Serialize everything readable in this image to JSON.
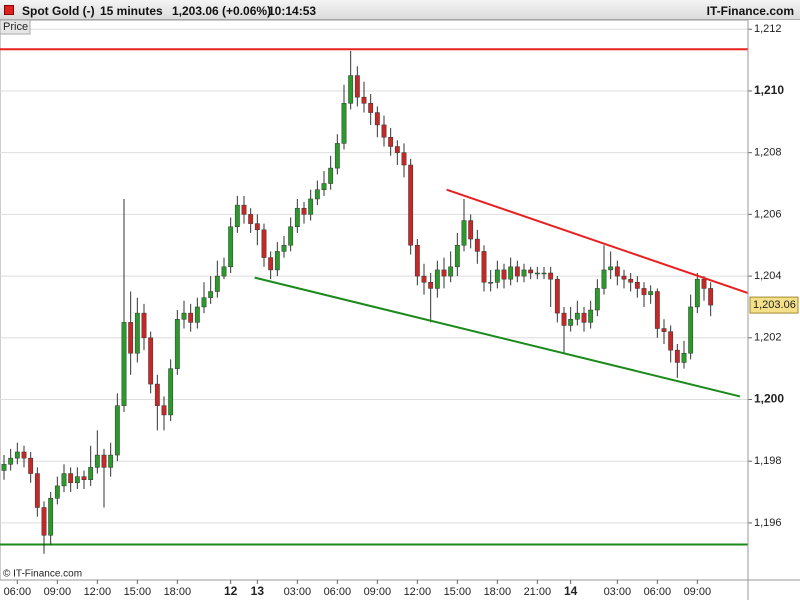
{
  "header": {
    "instrument": "Spot Gold (-)",
    "interval": "15 minutes",
    "quote": "1,203.06 (+0.06%)",
    "time": "10:14:53",
    "brand": "IT-Finance.com"
  },
  "chart_data": {
    "type": "candlestick",
    "panel_label": "Price",
    "watermark": "© IT-Finance.com",
    "up_color": "#2a9a2a",
    "down_color": "#c62828",
    "wick_color": "#333333",
    "grid": true,
    "ylim": [
      1194.15,
      1212.3
    ],
    "yticks": [
      {
        "value": 1196,
        "label": "1,196"
      },
      {
        "value": 1198,
        "label": "1,198"
      },
      {
        "value": 1200,
        "label": "1,200"
      },
      {
        "value": 1202,
        "label": "1,202"
      },
      {
        "value": 1204,
        "label": "1,204"
      },
      {
        "value": 1206,
        "label": "1,206"
      },
      {
        "value": 1208,
        "label": "1,208"
      },
      {
        "value": 1210,
        "label": "1,210"
      },
      {
        "value": 1212,
        "label": "1,212"
      }
    ],
    "xlim": [
      -0.6,
      111.6
    ],
    "xticks": [
      {
        "value": 2,
        "label": "06:00"
      },
      {
        "value": 8,
        "label": "09:00"
      },
      {
        "value": 14,
        "label": "12:00"
      },
      {
        "value": 20,
        "label": "15:00"
      },
      {
        "value": 26,
        "label": "18:00"
      },
      {
        "value": 34,
        "label": "12"
      },
      {
        "value": 38,
        "label": "13"
      },
      {
        "value": 44,
        "label": "03:00"
      },
      {
        "value": 50,
        "label": "06:00"
      },
      {
        "value": 56,
        "label": "09:00"
      },
      {
        "value": 62,
        "label": "12:00"
      },
      {
        "value": 68,
        "label": "15:00"
      },
      {
        "value": 74,
        "label": "18:00"
      },
      {
        "value": 80,
        "label": "21:00"
      },
      {
        "value": 85,
        "label": "14"
      },
      {
        "value": 92,
        "label": "03:00"
      },
      {
        "value": 98,
        "label": "06:00"
      },
      {
        "value": 104,
        "label": "09:00"
      }
    ],
    "open": [
      1197.7,
      1197.9,
      1198.1,
      1198.3,
      1198.1,
      1197.6,
      1196.5,
      1195.6,
      1196.8,
      1197.2,
      1197.6,
      1197.3,
      1197.5,
      1197.4,
      1197.8,
      1198.2,
      1197.8,
      1198.2,
      1199.8,
      1202.5,
      1201.5,
      1202.8,
      1202.0,
      1200.5,
      1199.8,
      1199.5,
      1201.0,
      1202.6,
      1202.8,
      1202.5,
      1203.0,
      1203.3,
      1203.5,
      1204.0,
      1204.3,
      1205.6,
      1206.3,
      1206.0,
      1205.7,
      1205.5,
      1204.6,
      1204.2,
      1204.8,
      1205.0,
      1205.6,
      1206.2,
      1206.0,
      1206.5,
      1206.8,
      1207.0,
      1207.5,
      1208.3,
      1209.6,
      1210.5,
      1209.8,
      1209.6,
      1209.3,
      1208.9,
      1208.5,
      1208.2,
      1208.0,
      1207.6,
      1205.0,
      1204.0,
      1203.8,
      1203.6,
      1204.2,
      1204.0,
      1204.3,
      1205.0,
      1205.8,
      1205.2,
      1204.8,
      1203.8,
      1203.8,
      1204.2,
      1203.9,
      1204.3,
      1204.0,
      1204.2,
      1204.1,
      1204.1,
      1204.1,
      1203.9,
      1202.8,
      1202.4,
      1202.6,
      1202.8,
      1202.5,
      1202.9,
      1203.6,
      1204.2,
      1204.3,
      1204.0,
      1203.9,
      1203.8,
      1203.6,
      1203.4,
      1203.5,
      1202.3,
      1202.2,
      1201.6,
      1201.2,
      1201.5,
      1203.0,
      1203.9,
      1203.6
    ],
    "high": [
      1198.2,
      1198.4,
      1198.6,
      1198.5,
      1198.3,
      1197.8,
      1196.7,
      1197.0,
      1197.5,
      1197.9,
      1197.8,
      1197.8,
      1197.7,
      1198.5,
      1199.0,
      1198.4,
      1198.6,
      1200.2,
      1206.5,
      1203.5,
      1203.3,
      1203.1,
      1202.2,
      1200.8,
      1200.1,
      1201.3,
      1202.9,
      1203.2,
      1203.1,
      1203.3,
      1203.8,
      1204.0,
      1204.5,
      1204.6,
      1205.9,
      1206.6,
      1206.6,
      1206.2,
      1206.0,
      1205.7,
      1204.8,
      1205.1,
      1205.3,
      1205.9,
      1206.5,
      1206.4,
      1206.8,
      1207.1,
      1207.4,
      1207.9,
      1208.6,
      1210.2,
      1211.3,
      1210.8,
      1210.3,
      1209.9,
      1209.5,
      1209.2,
      1208.8,
      1208.4,
      1208.3,
      1207.8,
      1205.2,
      1204.4,
      1204.1,
      1204.5,
      1204.6,
      1204.8,
      1205.4,
      1206.5,
      1206.0,
      1205.5,
      1205.0,
      1204.2,
      1204.5,
      1204.4,
      1204.6,
      1204.5,
      1204.4,
      1204.3,
      1204.3,
      1204.3,
      1204.3,
      1204.0,
      1203.0,
      1203.0,
      1203.2,
      1203.0,
      1203.2,
      1203.9,
      1205.0,
      1204.8,
      1204.5,
      1204.2,
      1204.1,
      1204.0,
      1203.8,
      1203.7,
      1203.6,
      1202.6,
      1202.4,
      1201.8,
      1201.9,
      1203.4,
      1204.1,
      1204.0,
      1203.8
    ],
    "low": [
      1197.4,
      1197.7,
      1197.9,
      1197.8,
      1197.3,
      1196.2,
      1195.0,
      1195.3,
      1196.6,
      1197.0,
      1197.0,
      1197.1,
      1197.1,
      1197.2,
      1197.6,
      1196.5,
      1197.5,
      1198.0,
      1199.6,
      1200.8,
      1201.2,
      1201.6,
      1200.2,
      1199.0,
      1199.0,
      1199.3,
      1200.8,
      1202.3,
      1202.2,
      1202.3,
      1202.8,
      1203.1,
      1203.3,
      1203.9,
      1204.1,
      1205.4,
      1205.7,
      1205.4,
      1205.0,
      1204.3,
      1203.9,
      1204.0,
      1204.6,
      1204.8,
      1205.4,
      1205.7,
      1205.8,
      1206.3,
      1206.6,
      1206.8,
      1207.3,
      1208.1,
      1209.4,
      1209.5,
      1209.3,
      1208.9,
      1208.5,
      1208.2,
      1207.9,
      1207.6,
      1207.2,
      1204.7,
      1203.7,
      1203.4,
      1202.5,
      1203.3,
      1203.6,
      1203.8,
      1204.0,
      1204.8,
      1204.9,
      1204.4,
      1203.5,
      1203.5,
      1203.6,
      1203.6,
      1203.7,
      1203.8,
      1203.8,
      1203.9,
      1203.9,
      1203.9,
      1203.0,
      1202.5,
      1201.5,
      1202.2,
      1202.4,
      1202.2,
      1202.3,
      1202.7,
      1203.4,
      1203.9,
      1203.7,
      1203.6,
      1203.5,
      1203.3,
      1203.0,
      1203.1,
      1202.0,
      1201.8,
      1201.2,
      1200.7,
      1201.0,
      1201.3,
      1202.8,
      1203.2,
      1202.7
    ],
    "close": [
      1197.9,
      1198.1,
      1198.3,
      1198.1,
      1197.6,
      1196.5,
      1195.6,
      1196.8,
      1197.2,
      1197.6,
      1197.3,
      1197.5,
      1197.4,
      1197.8,
      1198.2,
      1197.8,
      1198.2,
      1199.8,
      1202.5,
      1201.5,
      1202.8,
      1202.0,
      1200.5,
      1199.8,
      1199.5,
      1201.0,
      1202.6,
      1202.8,
      1202.5,
      1203.0,
      1203.3,
      1203.5,
      1204.0,
      1204.3,
      1205.6,
      1206.3,
      1206.0,
      1205.7,
      1205.5,
      1204.6,
      1204.2,
      1204.8,
      1205.0,
      1205.6,
      1206.2,
      1206.0,
      1206.5,
      1206.8,
      1207.0,
      1207.5,
      1208.3,
      1209.6,
      1210.5,
      1209.8,
      1209.6,
      1209.3,
      1208.9,
      1208.5,
      1208.2,
      1208.0,
      1207.6,
      1205.0,
      1204.0,
      1203.8,
      1203.6,
      1204.2,
      1204.0,
      1204.3,
      1205.0,
      1205.8,
      1205.2,
      1204.8,
      1203.8,
      1203.8,
      1204.2,
      1203.9,
      1204.3,
      1204.0,
      1204.2,
      1204.1,
      1204.1,
      1204.1,
      1203.9,
      1202.8,
      1202.4,
      1202.6,
      1202.8,
      1202.5,
      1202.9,
      1203.6,
      1204.2,
      1204.3,
      1204.0,
      1203.9,
      1203.8,
      1203.6,
      1203.4,
      1203.5,
      1202.3,
      1202.2,
      1201.6,
      1201.2,
      1201.5,
      1203.0,
      1203.9,
      1203.6,
      1203.06
    ],
    "hlines": [
      {
        "value": 1211.35,
        "color": "#e82020"
      },
      {
        "value": 1195.3,
        "color": "#1a8a1a"
      }
    ],
    "trendlines": [
      {
        "x": [
          66.4,
          111.6
        ],
        "y": [
          1206.8,
          1203.45
        ],
        "color": "#e82020"
      },
      {
        "x": [
          37.6,
          110.4
        ],
        "y": [
          1203.95,
          1200.1
        ],
        "color": "#1a8a1a"
      }
    ],
    "last_price": {
      "value": 1203.06,
      "label": "1,203.06",
      "color": "#f5e08a"
    }
  }
}
